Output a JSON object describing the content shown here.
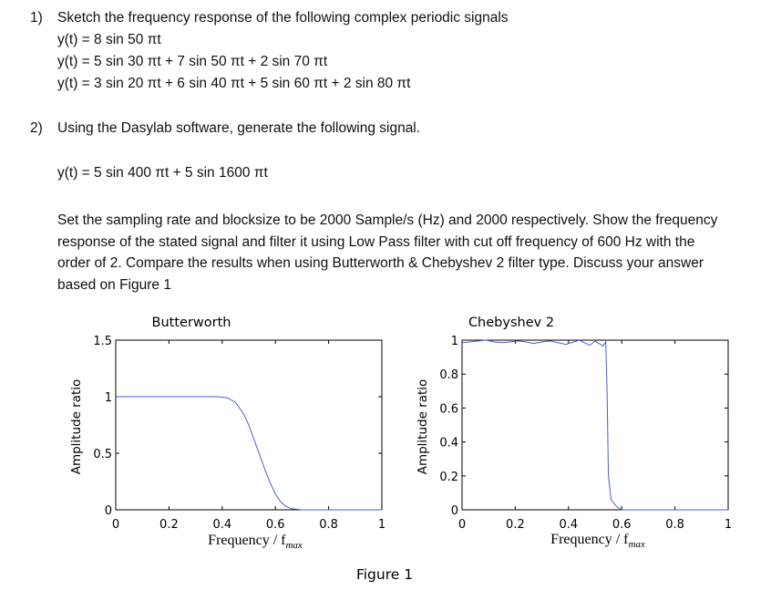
{
  "questions": [
    {
      "number": "1)",
      "text": "Sketch the frequency response of the following complex periodic signals",
      "equations": [
        "y(t) = 8 sin 50 πt",
        "y(t) = 5 sin 30 πt  + 7 sin 50 πt + 2 sin 70 πt",
        "y(t) = 3 sin 20 πt  + 6 sin 40 πt + 5 sin 60 πt + 2 sin 80 πt"
      ]
    },
    {
      "number": "2)",
      "text": "Using the Dasylab software, generate the following signal.",
      "equation": "y(t) = 5 sin 400 πt  + 5 sin 1600 πt",
      "paragraph": "Set the sampling rate and blocksize to be 2000 Sample/s (Hz) and 2000 respectively. Show the frequency response of the stated signal and filter it using Low Pass filter with cut off frequency of 600 Hz with the order of 2. Compare the results when using Butterworth & Chebyshev 2 filter type. Discuss your answer based on Figure 1"
    }
  ],
  "figure_caption": "Figure 1",
  "chart_data": [
    {
      "type": "line",
      "title": "Butterworth",
      "xlabel": "Frequency / f",
      "xlabel_sub": "max",
      "ylabel": "Amplitude ratio",
      "xlim": [
        0,
        1
      ],
      "ylim": [
        0,
        1.5
      ],
      "xticks": [
        "0",
        "0.2",
        "0.4",
        "0.6",
        "0.8",
        "1"
      ],
      "yticks": [
        "0",
        "0.5",
        "1",
        "1.5"
      ],
      "series": [
        {
          "color": "#4a5fd0",
          "x": [
            0,
            0.1,
            0.2,
            0.3,
            0.38,
            0.42,
            0.45,
            0.48,
            0.5,
            0.52,
            0.54,
            0.56,
            0.58,
            0.6,
            0.62,
            0.64,
            0.66,
            0.68,
            0.7,
            0.8,
            0.9,
            1.0
          ],
          "y": [
            1,
            1,
            1,
            1,
            1,
            0.99,
            0.95,
            0.85,
            0.75,
            0.62,
            0.49,
            0.36,
            0.24,
            0.14,
            0.07,
            0.03,
            0.01,
            0.005,
            0.0,
            0.0,
            0.0,
            0.0
          ]
        }
      ]
    },
    {
      "type": "line",
      "title": "Chebyshev 2",
      "xlabel": "Frequency / f",
      "xlabel_sub": "max",
      "ylabel": "Amplitude ratio",
      "xlim": [
        0,
        1
      ],
      "ylim": [
        0,
        1
      ],
      "xticks": [
        "0",
        "0.2",
        "0.4",
        "0.6",
        "0.8",
        "1"
      ],
      "yticks": [
        "0",
        "0.2",
        "0.4",
        "0.6",
        "0.8",
        "1"
      ],
      "series": [
        {
          "color": "#4a5fd0",
          "x": [
            0,
            0.03,
            0.06,
            0.09,
            0.12,
            0.15,
            0.18,
            0.21,
            0.24,
            0.27,
            0.3,
            0.33,
            0.36,
            0.39,
            0.42,
            0.44,
            0.46,
            0.48,
            0.5,
            0.52,
            0.53,
            0.54,
            0.545,
            0.55,
            0.56,
            0.58,
            0.6,
            0.7,
            0.8,
            0.9,
            1.0
          ],
          "y": [
            0.985,
            0.99,
            0.995,
            1.0,
            0.99,
            0.985,
            0.99,
            0.995,
            0.99,
            0.98,
            0.99,
            0.995,
            0.985,
            0.975,
            0.99,
            1.0,
            0.985,
            0.97,
            0.995,
            0.975,
            0.965,
            0.99,
            0.7,
            0.2,
            0.06,
            0.02,
            0.0,
            0.0,
            0.0,
            0.0,
            0.0
          ]
        }
      ]
    }
  ]
}
